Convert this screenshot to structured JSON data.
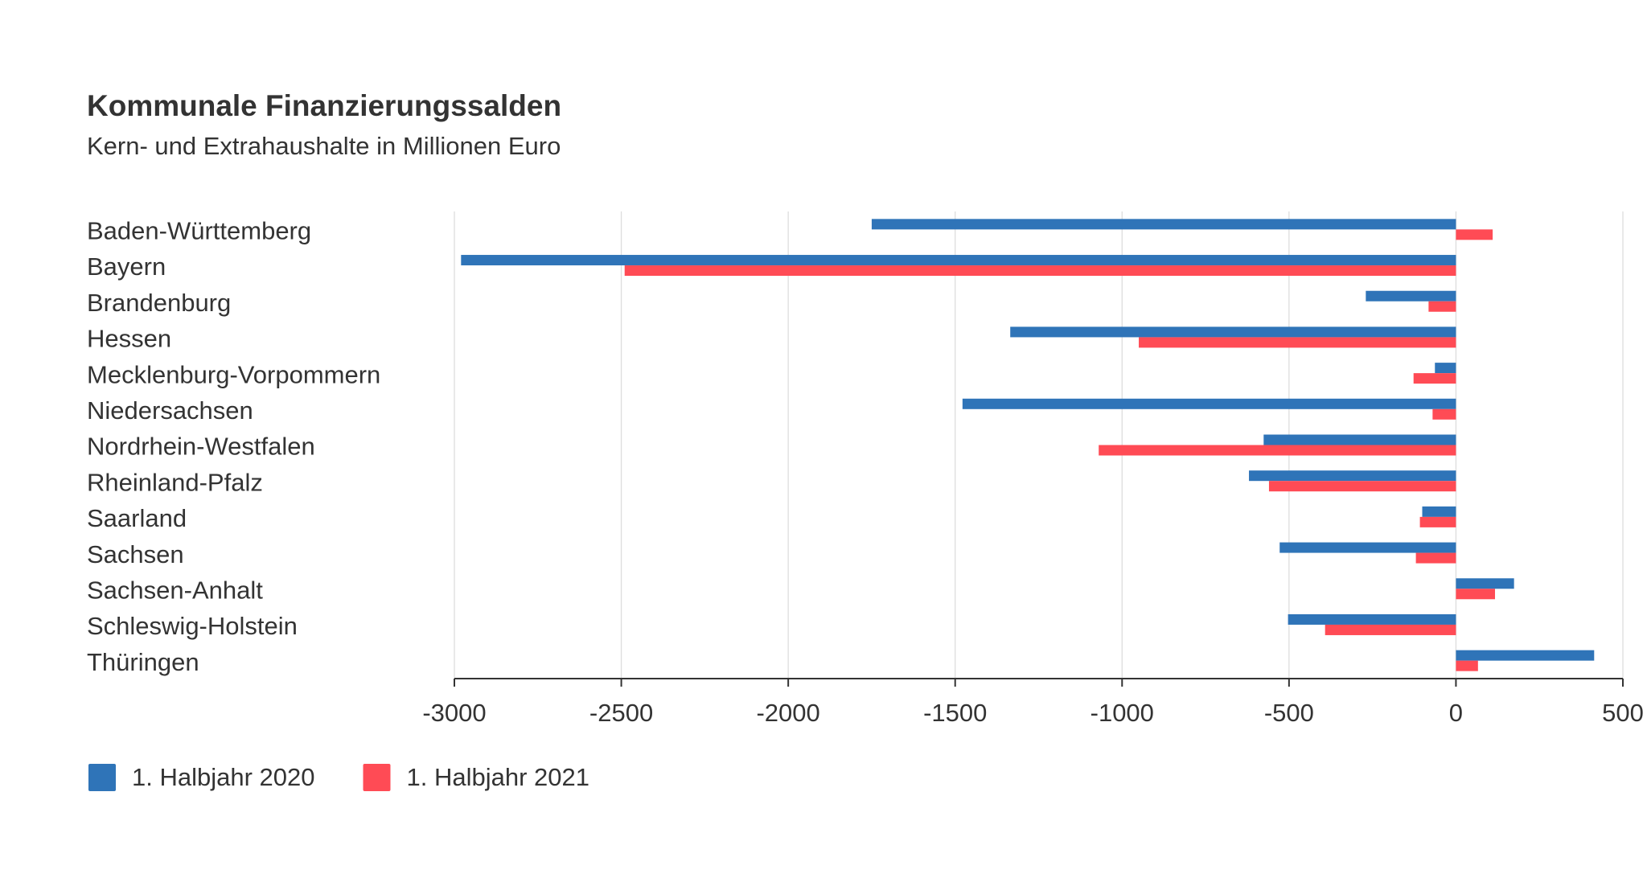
{
  "chart_data": {
    "type": "hbar",
    "title": "Kommunale Finanzierungssalden",
    "subtitle": "Kern- und Extrahaushalte in Millionen Euro",
    "categories": [
      "Baden-Württemberg",
      "Bayern",
      "Brandenburg",
      "Hessen",
      "Mecklenburg-Vorpommern",
      "Niedersachsen",
      "Nordrhein-Westfalen",
      "Rheinland-Pfalz",
      "Saarland",
      "Sachsen",
      "Sachsen-Anhalt",
      "Schleswig-Holstein",
      "Thüringen"
    ],
    "series": [
      {
        "name": "1. Halbjahr 2020",
        "color": "#2f74b8",
        "values": [
          -1750,
          -2980,
          -270,
          -1335,
          -63,
          -1478,
          -576,
          -620,
          -101,
          -528,
          174,
          -503,
          414
        ]
      },
      {
        "name": "1. Halbjahr 2021",
        "color": "#ff4b55",
        "values": [
          110,
          -2490,
          -82,
          -950,
          -127,
          -70,
          -1070,
          -560,
          -108,
          -120,
          117,
          -392,
          66
        ]
      }
    ],
    "xlim": [
      -3000,
      500
    ],
    "xticks": [
      -3000,
      -2500,
      -2000,
      -1500,
      -1000,
      -500,
      0,
      500
    ],
    "grid": true,
    "legend": "bottom-left"
  }
}
